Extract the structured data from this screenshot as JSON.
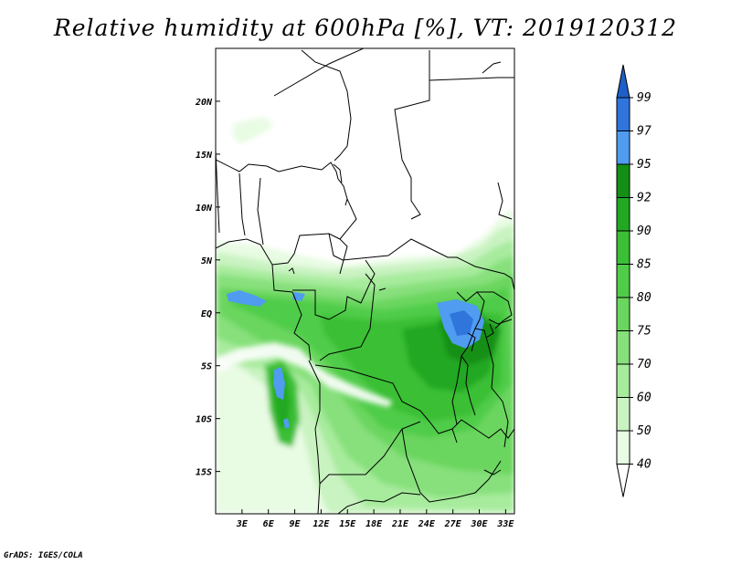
{
  "title": "Relative humidity at 600hPa [%], VT: 2019120312",
  "credit": "GrADS: IGES/COLA",
  "colors": {
    "fill_40_50": "#e8fbe3",
    "fill_50_60": "#c9f3c1",
    "fill_60_70": "#a7eb9d",
    "fill_70_75": "#87e07c",
    "fill_75_80": "#6ad65f",
    "fill_80_85": "#4fcc48",
    "fill_85_90": "#3bbf36",
    "fill_90_92": "#22a823",
    "fill_92_95": "#138f15",
    "fill_95_97": "#4f9cf0",
    "fill_97_99": "#2f75dc",
    "fill_99_plus": "#1f5fc8"
  },
  "chart_data": {
    "type": "heatmap",
    "title": "Relative humidity at 600hPa [%], VT: 2019120312",
    "variable": "Relative humidity",
    "level": "600hPa",
    "units": "%",
    "valid_time": "2019120312",
    "x_ticks": [
      "3E",
      "6E",
      "9E",
      "12E",
      "15E",
      "18E",
      "21E",
      "24E",
      "27E",
      "30E",
      "33E"
    ],
    "x_tick_values": [
      3,
      6,
      9,
      12,
      15,
      18,
      21,
      24,
      27,
      30,
      33
    ],
    "y_ticks": [
      "20N",
      "15N",
      "10N",
      "5N",
      "EQ",
      "5S",
      "10S",
      "15S"
    ],
    "y_tick_values": [
      20,
      15,
      10,
      5,
      0,
      -5,
      -10,
      -15
    ],
    "lon_range": [
      0,
      34
    ],
    "lat_range": [
      -19,
      25
    ],
    "colorbar_levels": [
      40,
      50,
      60,
      70,
      75,
      80,
      85,
      90,
      92,
      95,
      97,
      99
    ],
    "colorbar_labels": [
      "40",
      "50",
      "60",
      "70",
      "75",
      "80",
      "85",
      "90",
      "92",
      "95",
      "97",
      "99"
    ],
    "colorbar_placement": "right",
    "grid": false
  }
}
